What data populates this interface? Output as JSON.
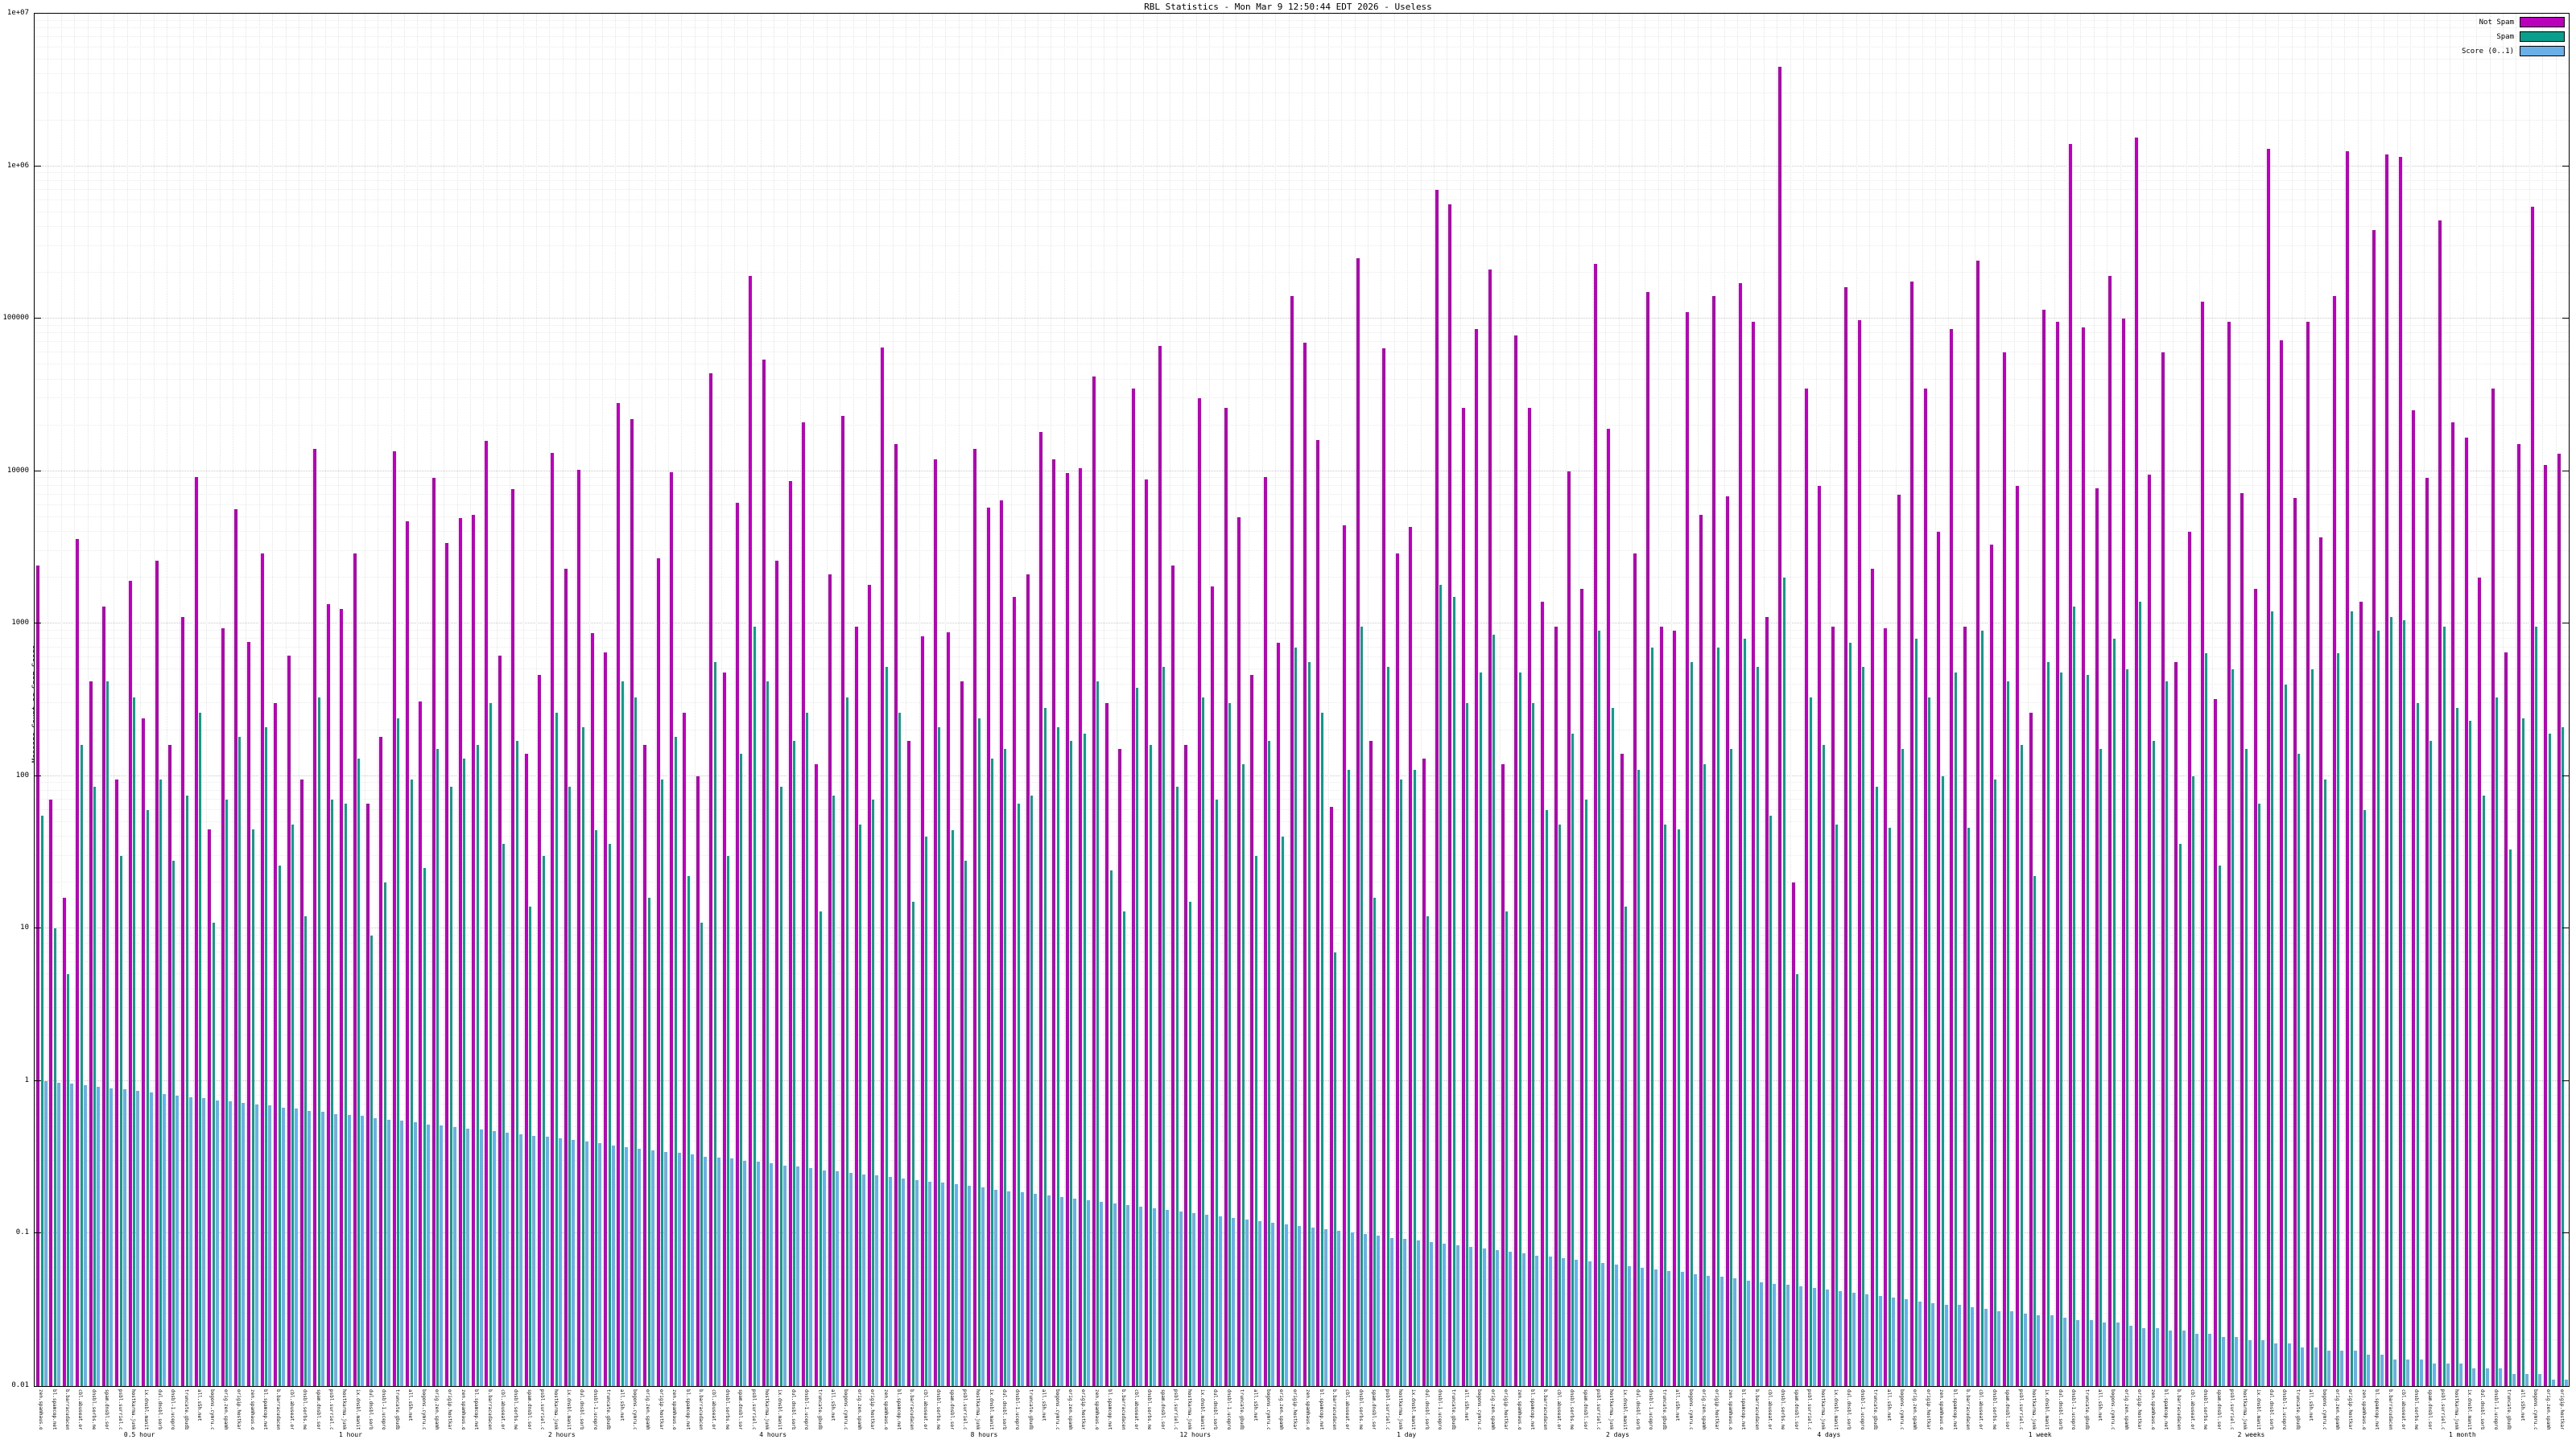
{
  "title": "RBL Statistics - Mon Mar  9 12:50:44 EDT 2026 - Useless",
  "ylabel": "Message Count or Spam Score",
  "colors": {
    "not_spam": "#bb00bb",
    "spam": "#0a9e8c",
    "score": "#6ab0e8",
    "grid_major": "#c9c9c9",
    "grid_minor": "#ebebeb"
  },
  "legend": [
    {
      "label": "Not Spam",
      "color": "#bb00bb"
    },
    {
      "label": "Spam",
      "color": "#0a9e8c"
    },
    {
      "label": "Score (0..1)",
      "color": "#6ab0e8"
    }
  ],
  "y_ticks": [
    "1e+07",
    "1e+06",
    "100000",
    "10000",
    "1000",
    "100",
    "10",
    "1",
    "0.1",
    "0.01"
  ],
  "chart_data": {
    "type": "bar",
    "title": "RBL Statistics - Mon Mar  9 12:50:44 EDT 2026 - Useless",
    "xlabel": "",
    "ylabel": "Message Count or Spam Score",
    "y_log": true,
    "ylim": [
      0.01,
      10000000
    ],
    "grid": true,
    "legend_position": "top-right",
    "rbls": [
      "zen.spamhaus.org",
      "bl.spamcop.net",
      "b.barracudacentral.org",
      "cbl.abuseat.org",
      "dnsbl.sorbs.net",
      "spam.dnsbl.sorbs.net",
      "psbl.surriel.com",
      "hostkarma.junkemailfilter.com",
      "ix.dnsbl.manitu.net",
      "dul.dnsbl.sorbs.net",
      "dnsbl-1.uceprotect.net",
      "truncate.gbudb.net",
      "all.s5h.net",
      "bogons.cymru.com",
      "orig.zen.spamhaus.org",
      "origip.hostkarma.org"
    ],
    "windows": [
      "0.5 hour",
      "1 hour",
      "2 hours",
      "4 hours",
      "8 hours",
      "12 hours",
      "1 day",
      "2 days",
      "4 days",
      "1 week",
      "2 weeks",
      "1 month"
    ],
    "series": [
      {
        "name": "Not Spam",
        "color": "#bb00bb",
        "values": [
          2400,
          70,
          16,
          3600,
          420,
          1300,
          95,
          1900,
          240,
          2600,
          160,
          1100,
          9200,
          45,
          930,
          5600,
          760,
          2900,
          300,
          620,
          95,
          14000,
          1350,
          1250,
          2900,
          66,
          180,
          13500,
          4700,
          310,
          9000,
          3400,
          4900,
          5200,
          15800,
          620,
          7600,
          140,
          460,
          13200,
          2300,
          10200,
          870,
          650,
          28000,
          22000,
          160,
          2700,
          9800,
          260,
          100,
          44000,
          480,
          6200,
          190000,
          54000,
          2600,
          8600,
          21000,
          120,
          2100,
          23000,
          960,
          1800,
          65000,
          15000,
          170,
          830,
          12000,
          880,
          420,
          14000,
          5800,
          6400,
          1500,
          2100,
          18000,
          12000,
          9700,
          10500,
          42000,
          300,
          150,
          35000,
          8800,
          66000,
          2400,
          160,
          30000,
          1750,
          26000,
          5000,
          460,
          9100,
          750,
          140000,
          70000,
          16000,
          63,
          4400,
          250000,
          170,
          64000,
          2900,
          4300,
          130,
          700000,
          560000,
          26000,
          86000,
          210000,
          120,
          78000,
          26000,
          1400,
          960,
          10000,
          1700,
          230000,
          19000,
          140,
          2900,
          150000,
          960,
          900,
          110000,
          5200,
          140000,
          6800,
          170000,
          95000,
          1100,
          4500000,
          20,
          35000,
          8000,
          950,
          160000,
          98000,
          2300,
          930,
          7000,
          175000,
          35000,
          4000,
          86000,
          950,
          240000,
          3300,
          60000,
          8000,
          260,
          115000,
          96000,
          1400000,
          88000,
          7700,
          190000,
          100000,
          1550000,
          9500,
          60000,
          560,
          4000,
          130000,
          320,
          95000,
          7200,
          1700,
          1300000,
          72000,
          6700,
          95000,
          3700,
          140000,
          1250000,
          1400,
          380000,
          1200000,
          1150000,
          25000,
          9000,
          440000,
          21000,
          16500,
          2000,
          35000,
          650,
          15000,
          540000,
          11000,
          13000
        ]
      },
      {
        "name": "Spam",
        "color": "#0a9e8c",
        "values": [
          55,
          10,
          5,
          160,
          85,
          420,
          30,
          330,
          60,
          95,
          28,
          75,
          260,
          11,
          70,
          180,
          45,
          210,
          26,
          48,
          12,
          330,
          70,
          66,
          130,
          9,
          20,
          240,
          95,
          25,
          150,
          85,
          130,
          160,
          300,
          36,
          170,
          14,
          30,
          260,
          85,
          210,
          44,
          36,
          420,
          330,
          16,
          95,
          180,
          22,
          11,
          560,
          30,
          140,
          950,
          420,
          85,
          170,
          260,
          13,
          75,
          330,
          48,
          70,
          520,
          260,
          15,
          40,
          210,
          44,
          28,
          240,
          130,
          150,
          66,
          75,
          280,
          210,
          170,
          190,
          420,
          24,
          13,
          380,
          160,
          520,
          85,
          15,
          330,
          70,
          300,
          120,
          30,
          170,
          40,
          700,
          560,
          260,
          7,
          110,
          950,
          16,
          520,
          95,
          110,
          12,
          1800,
          1500,
          300,
          480,
          850,
          13,
          480,
          300,
          60,
          48,
          190,
          70,
          900,
          280,
          14,
          110,
          700,
          48,
          45,
          560,
          120,
          700,
          150,
          800,
          520,
          55,
          2000,
          5,
          330,
          160,
          48,
          750,
          520,
          85,
          46,
          150,
          800,
          330,
          100,
          480,
          46,
          900,
          95,
          420,
          160,
          22,
          560,
          480,
          1300,
          460,
          150,
          800,
          500,
          1400,
          170,
          420,
          36,
          100,
          640,
          26,
          500,
          150,
          66,
          1200,
          400,
          140,
          500,
          95,
          640,
          1200,
          60,
          900,
          1100,
          1050,
          300,
          170,
          950,
          280,
          230,
          75,
          330,
          33,
          240,
          950,
          190,
          210
        ]
      },
      {
        "name": "Score (0..1)",
        "color": "#6ab0e8",
        "values": [
          1.0,
          0.98,
          0.96,
          0.94,
          0.92,
          0.9,
          0.88,
          0.86,
          0.84,
          0.82,
          0.8,
          0.78,
          0.77,
          0.75,
          0.74,
          0.72,
          0.7,
          0.69,
          0.67,
          0.66,
          0.64,
          0.63,
          0.61,
          0.6,
          0.59,
          0.57,
          0.56,
          0.55,
          0.54,
          0.52,
          0.51,
          0.5,
          0.49,
          0.48,
          0.47,
          0.46,
          0.45,
          0.44,
          0.43,
          0.42,
          0.41,
          0.4,
          0.39,
          0.38,
          0.37,
          0.36,
          0.35,
          0.345,
          0.34,
          0.33,
          0.32,
          0.315,
          0.31,
          0.3,
          0.295,
          0.29,
          0.28,
          0.275,
          0.27,
          0.26,
          0.255,
          0.25,
          0.245,
          0.24,
          0.235,
          0.23,
          0.225,
          0.22,
          0.215,
          0.21,
          0.205,
          0.2,
          0.195,
          0.19,
          0.186,
          0.182,
          0.178,
          0.174,
          0.17,
          0.166,
          0.162,
          0.158,
          0.154,
          0.15,
          0.147,
          0.143,
          0.14,
          0.136,
          0.133,
          0.13,
          0.127,
          0.124,
          0.121,
          0.118,
          0.115,
          0.112,
          0.11,
          0.107,
          0.104,
          0.102,
          0.099,
          0.097,
          0.094,
          0.092,
          0.09,
          0.088,
          0.086,
          0.084,
          0.082,
          0.08,
          0.078,
          0.076,
          0.074,
          0.072,
          0.071,
          0.069,
          0.067,
          0.066,
          0.064,
          0.063,
          0.061,
          0.06,
          0.058,
          0.057,
          0.056,
          0.054,
          0.053,
          0.052,
          0.051,
          0.049,
          0.048,
          0.047,
          0.046,
          0.045,
          0.044,
          0.043,
          0.042,
          0.041,
          0.04,
          0.039,
          0.038,
          0.037,
          0.036,
          0.035,
          0.034,
          0.034,
          0.033,
          0.032,
          0.031,
          0.031,
          0.03,
          0.029,
          0.029,
          0.028,
          0.027,
          0.027,
          0.026,
          0.026,
          0.025,
          0.024,
          0.024,
          0.023,
          0.023,
          0.022,
          0.022,
          0.021,
          0.021,
          0.02,
          0.02,
          0.019,
          0.019,
          0.018,
          0.018,
          0.017,
          0.017,
          0.017,
          0.016,
          0.016,
          0.015,
          0.015,
          0.015,
          0.014,
          0.014,
          0.014,
          0.013,
          0.013,
          0.013,
          0.012,
          0.012,
          0.012,
          0.011,
          0.011
        ]
      }
    ]
  }
}
